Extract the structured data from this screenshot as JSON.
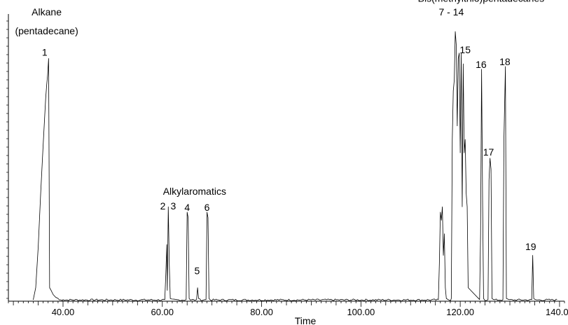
{
  "chart_data": {
    "type": "line",
    "xlabel": "Time",
    "ylabel": "",
    "xlim": [
      29,
      141
    ],
    "ylim": [
      0,
      100
    ],
    "x_ticks": [
      40,
      60,
      80,
      100,
      120,
      140
    ],
    "x_tick_labels": [
      "40.00",
      "60.00",
      "80.00",
      "100.00",
      "120.00",
      "140.00"
    ],
    "series": [
      {
        "points": [
          [
            34.0,
            0.5
          ],
          [
            34.5,
            5
          ],
          [
            35.0,
            20
          ],
          [
            35.5,
            40
          ],
          [
            36.0,
            58
          ],
          [
            36.5,
            75
          ],
          [
            36.7,
            80
          ],
          [
            36.9,
            84
          ],
          [
            37.1,
            90
          ],
          [
            37.3,
            5
          ],
          [
            37.6,
            4
          ],
          [
            38.0,
            2.5
          ],
          [
            38.5,
            1.5
          ],
          [
            39.0,
            1
          ],
          [
            40.0,
            0.6
          ],
          [
            60.5,
            0.6
          ],
          [
            60.7,
            10
          ],
          [
            60.9,
            21
          ],
          [
            61.0,
            4
          ],
          [
            61.2,
            35
          ],
          [
            61.4,
            14
          ],
          [
            61.6,
            1
          ],
          [
            64.8,
            0.6
          ],
          [
            65.0,
            33
          ],
          [
            65.2,
            31
          ],
          [
            65.4,
            1
          ],
          [
            66.9,
            0.6
          ],
          [
            67.1,
            5
          ],
          [
            67.3,
            1
          ],
          [
            68.8,
            0.6
          ],
          [
            69.0,
            33
          ],
          [
            69.2,
            31
          ],
          [
            69.4,
            1
          ],
          [
            115.6,
            0.6
          ],
          [
            115.8,
            14
          ],
          [
            116.0,
            33
          ],
          [
            116.2,
            30
          ],
          [
            116.4,
            35
          ],
          [
            116.6,
            17
          ],
          [
            116.8,
            25
          ],
          [
            117.0,
            5
          ],
          [
            117.2,
            1
          ],
          [
            118.2,
            1
          ],
          [
            118.4,
            60
          ],
          [
            118.6,
            78
          ],
          [
            118.8,
            82
          ],
          [
            119.0,
            100
          ],
          [
            119.2,
            95
          ],
          [
            119.4,
            65
          ],
          [
            119.6,
            90
          ],
          [
            119.8,
            92
          ],
          [
            120.0,
            55
          ],
          [
            120.2,
            92
          ],
          [
            120.4,
            35
          ],
          [
            120.6,
            88
          ],
          [
            120.8,
            55
          ],
          [
            121.0,
            60
          ],
          [
            121.2,
            40
          ],
          [
            121.4,
            35
          ],
          [
            121.6,
            5
          ],
          [
            123.9,
            0.6
          ],
          [
            124.1,
            25
          ],
          [
            124.3,
            86
          ],
          [
            124.5,
            38
          ],
          [
            124.7,
            1
          ],
          [
            125.6,
            0.6
          ],
          [
            125.8,
            45
          ],
          [
            126.0,
            53
          ],
          [
            126.2,
            49
          ],
          [
            126.4,
            1
          ],
          [
            128.6,
            0.6
          ],
          [
            128.8,
            60
          ],
          [
            129.1,
            87
          ],
          [
            129.3,
            1
          ],
          [
            134.4,
            0.6
          ],
          [
            134.6,
            17
          ],
          [
            134.8,
            1
          ],
          [
            139.5,
            0.6
          ]
        ]
      }
    ],
    "annotations": [
      {
        "text": "Alkane",
        "x": 36.7,
        "y": 106
      },
      {
        "text": "(pentadecane)",
        "x": 36.7,
        "y": 99
      },
      {
        "text": "1",
        "x": 36.3,
        "y": 91
      },
      {
        "text": "Alkylaromatics",
        "x": 66.5,
        "y": 39.5
      },
      {
        "text": "2",
        "x": 60.1,
        "y": 34
      },
      {
        "text": "3",
        "x": 62.2,
        "y": 34
      },
      {
        "text": "4",
        "x": 65.0,
        "y": 33.5
      },
      {
        "text": "5",
        "x": 67.0,
        "y": 10
      },
      {
        "text": "6",
        "x": 69.0,
        "y": 33.5
      },
      {
        "text": "Bis(methylthio)pentadecanes",
        "x": 124.2,
        "y": 111
      },
      {
        "text": "7 - 14",
        "x": 118.2,
        "y": 106
      },
      {
        "text": "15",
        "x": 121.0,
        "y": 92
      },
      {
        "text": "16",
        "x": 124.2,
        "y": 86.5
      },
      {
        "text": "17",
        "x": 125.7,
        "y": 54
      },
      {
        "text": "18",
        "x": 129.0,
        "y": 87.5
      },
      {
        "text": "19",
        "x": 134.2,
        "y": 19
      }
    ]
  }
}
